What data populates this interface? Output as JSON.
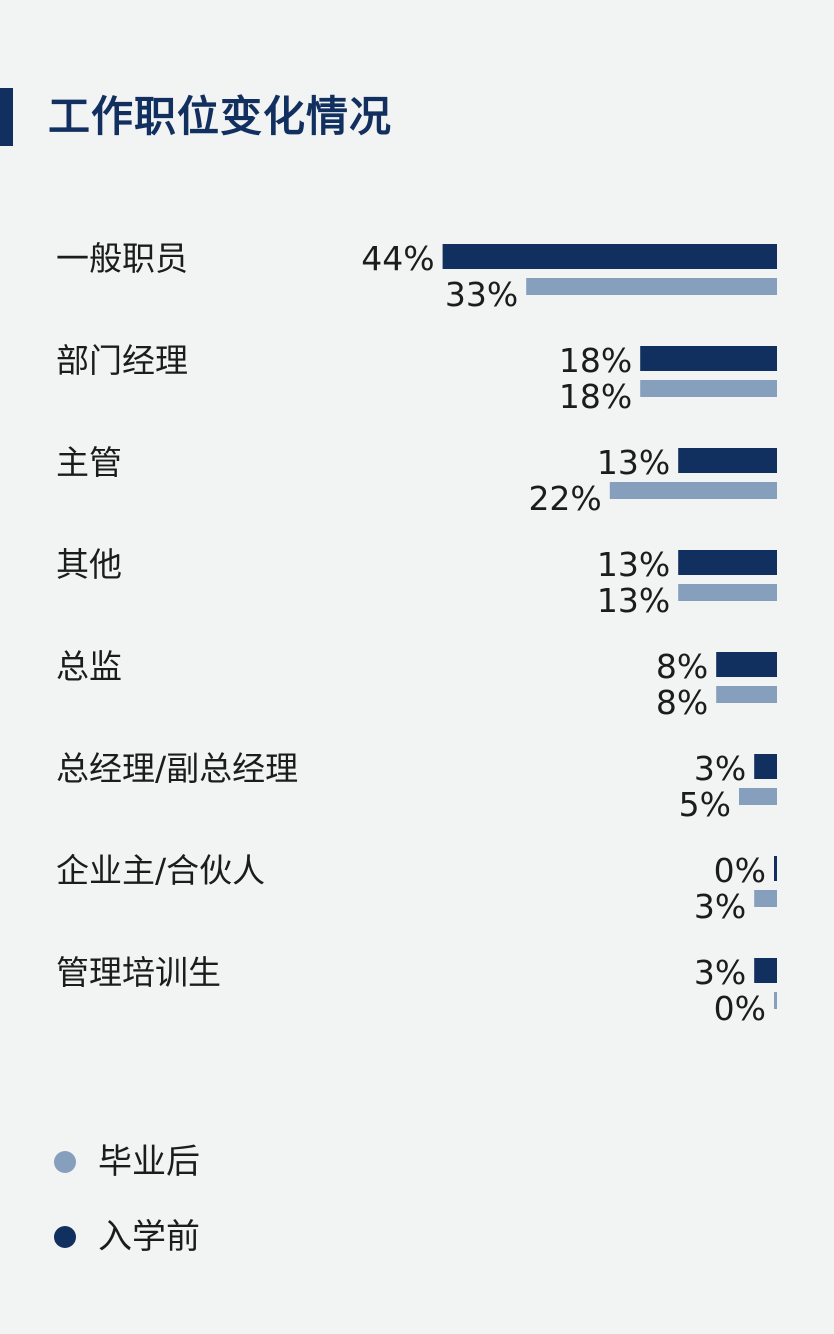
{
  "title": "工作职位变化情况",
  "colors": {
    "before": "#12305f",
    "after": "#859fbd",
    "accent": "#12305f",
    "text": "#1c1c1c",
    "background": "#f2f3f3"
  },
  "legend": [
    {
      "key": "after",
      "label": "毕业后"
    },
    {
      "key": "before",
      "label": "入学前"
    }
  ],
  "chart_data": {
    "type": "bar",
    "orientation": "horizontal",
    "title": "工作职位变化情况",
    "categories": [
      "一般职员",
      "部门经理",
      "主管",
      "其他",
      "总监",
      "总经理/副总经理",
      "企业主/合伙人",
      "管理培训生"
    ],
    "series": [
      {
        "name": "入学前",
        "key": "before",
        "values": [
          44,
          18,
          13,
          13,
          8,
          3,
          0,
          3
        ]
      },
      {
        "name": "毕业后",
        "key": "after",
        "values": [
          33,
          18,
          22,
          13,
          8,
          5,
          3,
          0
        ]
      }
    ],
    "value_labels": {
      "before": [
        "44%",
        "18%",
        "13%",
        "13%",
        "8%",
        "3%",
        "0%",
        "3%"
      ],
      "after": [
        "33%",
        "18%",
        "22%",
        "13%",
        "8%",
        "5%",
        "3%",
        "0%"
      ]
    },
    "unit": "%",
    "xlim": [
      0,
      44
    ],
    "legend_position": "bottom-left"
  }
}
